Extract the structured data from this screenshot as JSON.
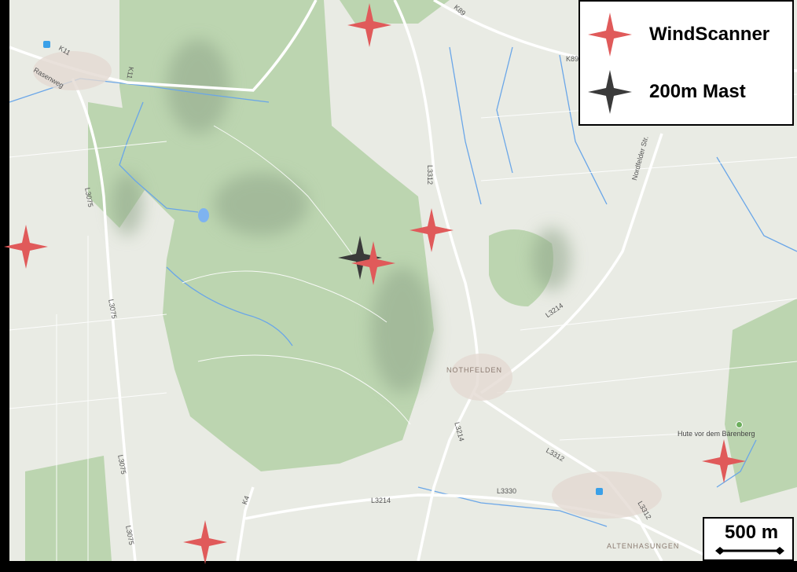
{
  "legend": {
    "items": [
      {
        "label": "WindScanner",
        "color": "#e05a5a",
        "icon": "four-point-star-icon"
      },
      {
        "label": "200m Mast",
        "color": "#3a3a3a",
        "icon": "four-point-star-icon"
      }
    ]
  },
  "scale_bar": {
    "label": "500 m"
  },
  "map_labels": {
    "road_k11": "K11",
    "road_k11b": "K11",
    "street_rasenweg": "Rasenweg",
    "road_l3075_a": "L3075",
    "road_l3075_b": "L3075",
    "road_l3075_c": "L3075",
    "road_l3075_d": "L3075",
    "road_l3312_a": "L3312",
    "road_l3312_b": "L3312",
    "road_l3312_c": "L3312",
    "road_l3214_a": "L3214",
    "road_l3214_b": "L3214",
    "road_l3214_c": "L3214",
    "road_l3330": "L3330",
    "road_k89_a": "K89",
    "road_k89_b": "K89",
    "road_k4": "K4",
    "street_nordfelder": "Nordfelder Str.",
    "town_nothfelden": "NOTHFELDEN",
    "town_altenhasungen": "ALTENHASUNGEN",
    "poi_hute": "Hute vor dem Bärenberg"
  },
  "colors": {
    "land": "#e9ebe4",
    "forest": "#b9d3ae",
    "water": "#6aa6e8",
    "road": "#ffffff",
    "windscanner": "#e05a5a",
    "mast": "#3a3a3a"
  }
}
